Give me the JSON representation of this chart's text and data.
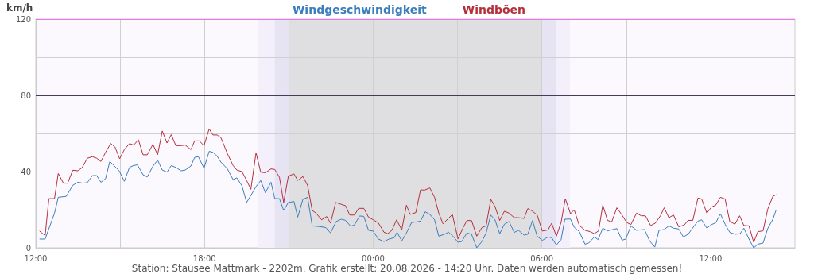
{
  "chart_data": {
    "type": "line",
    "ylabel": "km/h",
    "annotations": [
      "Station: Stausee Mattmark - 2202m. Grafik erstellt: 20.08.2026 - 14:20 Uhr. Daten werden automatisch gemessen!"
    ],
    "xlim": [
      "2026-08-19T12:00",
      "2026-08-20T15:00"
    ],
    "xticks": [
      {
        "value": "2026-08-19T12:00",
        "label": "12:00"
      },
      {
        "value": "2026-08-19T15:00",
        "label": null
      },
      {
        "value": "2026-08-19T18:00",
        "label": "18:00"
      },
      {
        "value": "2026-08-19T21:00",
        "label": null
      },
      {
        "value": "2026-08-20T00:00",
        "label": "00:00"
      },
      {
        "value": "2026-08-20T03:00",
        "label": null
      },
      {
        "value": "2026-08-20T06:00",
        "label": "06:00"
      },
      {
        "value": "2026-08-20T09:00",
        "label": null
      },
      {
        "value": "2026-08-20T12:00",
        "label": "12:00"
      }
    ],
    "ylim": [
      0,
      120
    ],
    "yticks": [
      0,
      {
        "value": 20,
        "label": null
      },
      40,
      {
        "value": 60,
        "label": null
      },
      80,
      {
        "value": 100,
        "label": null
      },
      120
    ],
    "grid": true,
    "legend": "top",
    "marker": "none",
    "line_style": "solid",
    "ref_lines": [
      {
        "axis": "y",
        "value": 40,
        "color": "#f2f020"
      },
      {
        "axis": "y",
        "value": 80,
        "color": "#4a3a5a"
      },
      {
        "axis": "y",
        "value": 120,
        "color": "#f070f0"
      }
    ],
    "bands": [
      {
        "axis": "x",
        "from": "2026-08-19T19:54",
        "to": "2026-08-19T20:30",
        "color": "#f3effb"
      },
      {
        "axis": "x",
        "from": "2026-08-19T20:30",
        "to": "2026-08-19T21:00",
        "color": "#e6e3f2"
      },
      {
        "axis": "x",
        "from": "2026-08-19T21:00",
        "to": "2026-08-20T06:00",
        "color": "#dfdfe2"
      },
      {
        "axis": "x",
        "from": "2026-08-20T06:00",
        "to": "2026-08-20T06:30",
        "color": "#e6e3f2"
      },
      {
        "axis": "x",
        "from": "2026-08-20T06:30",
        "to": "2026-08-20T07:00",
        "color": "#f3effb"
      }
    ],
    "series": [
      {
        "name": "Windgeschwindigkeit",
        "color": "#3b7dbd",
        "x": [
          "2026-08-19T12:08",
          "2026-08-19T12:20",
          "2026-08-19T12:40",
          "2026-08-19T12:48",
          "2026-08-19T13:05",
          "2026-08-19T13:19",
          "2026-08-19T13:30",
          "2026-08-19T13:41",
          "2026-08-19T13:50",
          "2026-08-19T14:01",
          "2026-08-19T14:10",
          "2026-08-19T14:19",
          "2026-08-19T14:29",
          "2026-08-19T14:38",
          "2026-08-19T14:58",
          "2026-08-19T15:09",
          "2026-08-19T15:20",
          "2026-08-19T15:29",
          "2026-08-19T15:37",
          "2026-08-19T15:49",
          "2026-08-19T15:58",
          "2026-08-19T16:10",
          "2026-08-19T16:20",
          "2026-08-19T16:30",
          "2026-08-19T16:40",
          "2026-08-19T16:49",
          "2026-08-19T16:59",
          "2026-08-19T17:10",
          "2026-08-19T17:19",
          "2026-08-19T17:31",
          "2026-08-19T17:39",
          "2026-08-19T17:47",
          "2026-08-19T17:59",
          "2026-08-19T18:10",
          "2026-08-19T18:18",
          "2026-08-19T18:27",
          "2026-08-19T18:35",
          "2026-08-19T18:49",
          "2026-08-19T19:01",
          "2026-08-19T19:09",
          "2026-08-19T19:20",
          "2026-08-19T19:30",
          "2026-08-19T19:40",
          "2026-08-19T19:50",
          "2026-08-19T20:00",
          "2026-08-19T20:10",
          "2026-08-19T20:22",
          "2026-08-19T20:30",
          "2026-08-19T20:40",
          "2026-08-19T20:49",
          "2026-08-19T20:59",
          "2026-08-19T21:11",
          "2026-08-19T21:19",
          "2026-08-19T21:30",
          "2026-08-19T21:40",
          "2026-08-19T21:50",
          "2026-08-19T22:07",
          "2026-08-19T22:19",
          "2026-08-19T22:29",
          "2026-08-19T22:41",
          "2026-08-19T22:52",
          "2026-08-19T23:01",
          "2026-08-19T23:12",
          "2026-08-19T23:20",
          "2026-08-19T23:31",
          "2026-08-19T23:40",
          "2026-08-19T23:50",
          "2026-08-20T00:00",
          "2026-08-20T00:11",
          "2026-08-20T00:23",
          "2026-08-20T00:34",
          "2026-08-20T00:45",
          "2026-08-20T00:51",
          "2026-08-20T01:01",
          "2026-08-20T01:11",
          "2026-08-20T01:22",
          "2026-08-20T01:33",
          "2026-08-20T01:41",
          "2026-08-20T01:51",
          "2026-08-20T02:01",
          "2026-08-20T02:11",
          "2026-08-20T02:20",
          "2026-08-20T02:32",
          "2026-08-20T02:41",
          "2026-08-20T02:52",
          "2026-08-20T03:01",
          "2026-08-20T03:09",
          "2026-08-20T03:20",
          "2026-08-20T03:30",
          "2026-08-20T03:41",
          "2026-08-20T03:52",
          "2026-08-20T04:01",
          "2026-08-20T04:11",
          "2026-08-20T04:20",
          "2026-08-20T04:30",
          "2026-08-20T04:40",
          "2026-08-20T04:50",
          "2026-08-20T05:01",
          "2026-08-20T05:10",
          "2026-08-20T05:22",
          "2026-08-20T05:30",
          "2026-08-20T05:40",
          "2026-08-20T05:50",
          "2026-08-20T06:01",
          "2026-08-20T06:13",
          "2026-08-20T06:21",
          "2026-08-20T06:31",
          "2026-08-20T06:41",
          "2026-08-20T06:49",
          "2026-08-20T07:01",
          "2026-08-20T07:09",
          "2026-08-20T07:20",
          "2026-08-20T07:32",
          "2026-08-20T07:40",
          "2026-08-20T07:52",
          "2026-08-20T08:00",
          "2026-08-20T08:10",
          "2026-08-20T08:20",
          "2026-08-20T08:40",
          "2026-08-20T08:51",
          "2026-08-20T08:59",
          "2026-08-20T09:10",
          "2026-08-20T09:22",
          "2026-08-20T09:39",
          "2026-08-20T09:50",
          "2026-08-20T10:01",
          "2026-08-20T10:10",
          "2026-08-20T10:21",
          "2026-08-20T10:31",
          "2026-08-20T10:41",
          "2026-08-20T10:52",
          "2026-08-20T11:02",
          "2026-08-20T11:12",
          "2026-08-20T11:23",
          "2026-08-20T11:33",
          "2026-08-20T11:41",
          "2026-08-20T11:52",
          "2026-08-20T12:02",
          "2026-08-20T12:11",
          "2026-08-20T12:21",
          "2026-08-20T12:31",
          "2026-08-20T12:41",
          "2026-08-20T12:52",
          "2026-08-20T13:03",
          "2026-08-20T13:11",
          "2026-08-20T13:22",
          "2026-08-20T13:32",
          "2026-08-20T13:41",
          "2026-08-20T13:52",
          "2026-08-20T14:02",
          "2026-08-20T14:13",
          "2026-08-20T14:20"
        ],
        "values": [
          4.6,
          4.6,
          18.2,
          26.5,
          27.0,
          32.8,
          34.4,
          33.9,
          34.2,
          37.9,
          37.9,
          34.4,
          36.3,
          45.3,
          40.4,
          34.9,
          42.2,
          43.2,
          43.5,
          38.3,
          37.2,
          42.8,
          46.0,
          40.8,
          39.7,
          43.1,
          42.2,
          40.4,
          40.8,
          42.9,
          47.4,
          47.8,
          41.8,
          50.6,
          50.1,
          48.1,
          45.0,
          41.4,
          35.8,
          36.7,
          32.5,
          23.8,
          27.9,
          32.1,
          35.3,
          28.9,
          34.4,
          25.8,
          25.8,
          19.6,
          23.8,
          24.3,
          16.1,
          25.4,
          26.5,
          11.5,
          11.1,
          10.6,
          7.8,
          13.8,
          15.0,
          14.4,
          11.3,
          12.0,
          16.7,
          16.5,
          9.2,
          8.8,
          4.6,
          3.3,
          4.6,
          5.3,
          8.2,
          3.6,
          7.8,
          13.3,
          13.6,
          14.0,
          18.9,
          17.5,
          14.7,
          6.1,
          7.1,
          8.2,
          5.7,
          2.9,
          3.3,
          7.8,
          7.1,
          0,
          3.3,
          7.8,
          17.2,
          14.7,
          7.4,
          12.4,
          13.8,
          8.1,
          9.2,
          6.7,
          7.1,
          14.3,
          6.1,
          3.9,
          5.7,
          5.3,
          1.5,
          4.3,
          15.0,
          15.1,
          10.8,
          8.5,
          1.9,
          2.5,
          5.7,
          4.3,
          10.3,
          8.9,
          10.1,
          4.0,
          4.6,
          11.5,
          9.2,
          9.6,
          3.6,
          0.4,
          9.2,
          9.6,
          11.5,
          10.3,
          9.9,
          5.7,
          7.1,
          10.8,
          14.0,
          14.7,
          10.3,
          12.2,
          13.1,
          17.8,
          12.4,
          8.1,
          7.1,
          7.4,
          10.3,
          4.6,
          0,
          1.9,
          2.5,
          10.1,
          15.0,
          19.9
        ]
      },
      {
        "name": "Windböen",
        "color": "#b3303c",
        "x": [
          "2026-08-19T12:08",
          "2026-08-19T12:20",
          "2026-08-19T12:28",
          "2026-08-19T12:40",
          "2026-08-19T12:48",
          "2026-08-19T12:59",
          "2026-08-19T13:08",
          "2026-08-19T13:19",
          "2026-08-19T13:30",
          "2026-08-19T13:39",
          "2026-08-19T13:50",
          "2026-08-19T14:01",
          "2026-08-19T14:10",
          "2026-08-19T14:19",
          "2026-08-19T14:29",
          "2026-08-19T14:40",
          "2026-08-19T14:49",
          "2026-08-19T14:59",
          "2026-08-19T15:09",
          "2026-08-19T15:20",
          "2026-08-19T15:29",
          "2026-08-19T15:39",
          "2026-08-19T15:49",
          "2026-08-19T15:58",
          "2026-08-19T16:10",
          "2026-08-19T16:20",
          "2026-08-19T16:30",
          "2026-08-19T16:40",
          "2026-08-19T16:49",
          "2026-08-19T16:59",
          "2026-08-19T17:10",
          "2026-08-19T17:19",
          "2026-08-19T17:31",
          "2026-08-19T17:39",
          "2026-08-19T17:49",
          "2026-08-19T17:59",
          "2026-08-19T18:10",
          "2026-08-19T18:18",
          "2026-08-19T18:27",
          "2026-08-19T18:35",
          "2026-08-19T18:49",
          "2026-08-19T19:01",
          "2026-08-19T19:09",
          "2026-08-19T19:20",
          "2026-08-19T19:30",
          "2026-08-19T19:39",
          "2026-08-19T19:50",
          "2026-08-19T20:00",
          "2026-08-19T20:10",
          "2026-08-19T20:22",
          "2026-08-19T20:30",
          "2026-08-19T20:40",
          "2026-08-19T20:49",
          "2026-08-19T20:59",
          "2026-08-19T21:11",
          "2026-08-19T21:19",
          "2026-08-19T21:30",
          "2026-08-19T21:40",
          "2026-08-19T21:50",
          "2026-08-19T21:58",
          "2026-08-19T22:10",
          "2026-08-19T22:21",
          "2026-08-19T22:29",
          "2026-08-19T22:40",
          "2026-08-19T22:52",
          "2026-08-19T23:01",
          "2026-08-19T23:10",
          "2026-08-19T23:20",
          "2026-08-19T23:29",
          "2026-08-19T23:40",
          "2026-08-19T23:50",
          "2026-08-20T00:00",
          "2026-08-20T00:11",
          "2026-08-20T00:23",
          "2026-08-20T00:31",
          "2026-08-20T00:40",
          "2026-08-20T00:50",
          "2026-08-20T01:01",
          "2026-08-20T01:11",
          "2026-08-20T01:19",
          "2026-08-20T01:31",
          "2026-08-20T01:41",
          "2026-08-20T01:50",
          "2026-08-20T02:01",
          "2026-08-20T02:11",
          "2026-08-20T02:20",
          "2026-08-20T02:29",
          "2026-08-20T02:49",
          "2026-08-20T03:01",
          "2026-08-20T03:12",
          "2026-08-20T03:20",
          "2026-08-20T03:30",
          "2026-08-20T03:41",
          "2026-08-20T03:52",
          "2026-08-20T04:01",
          "2026-08-20T04:11",
          "2026-08-20T04:20",
          "2026-08-20T04:30",
          "2026-08-20T04:40",
          "2026-08-20T04:50",
          "2026-08-20T05:01",
          "2026-08-20T05:10",
          "2026-08-20T05:22",
          "2026-08-20T05:30",
          "2026-08-20T05:40",
          "2026-08-20T05:50",
          "2026-08-20T06:01",
          "2026-08-20T06:13",
          "2026-08-20T06:21",
          "2026-08-20T06:31",
          "2026-08-20T06:41",
          "2026-08-20T06:50",
          "2026-08-20T07:01",
          "2026-08-20T07:09",
          "2026-08-20T07:20",
          "2026-08-20T07:32",
          "2026-08-20T07:43",
          "2026-08-20T07:52",
          "2026-08-20T08:01",
          "2026-08-20T08:10",
          "2026-08-20T08:20",
          "2026-08-20T08:29",
          "2026-08-20T08:40",
          "2026-08-20T08:51",
          "2026-08-20T09:01",
          "2026-08-20T09:10",
          "2026-08-20T09:22",
          "2026-08-20T09:32",
          "2026-08-20T09:41",
          "2026-08-20T09:52",
          "2026-08-20T10:02",
          "2026-08-20T10:13",
          "2026-08-20T10:21",
          "2026-08-20T10:31",
          "2026-08-20T10:41",
          "2026-08-20T10:52",
          "2026-08-20T11:04",
          "2026-08-20T11:12",
          "2026-08-20T11:22",
          "2026-08-20T11:33",
          "2026-08-20T11:41",
          "2026-08-20T11:52",
          "2026-08-20T12:02",
          "2026-08-20T12:11",
          "2026-08-20T12:21",
          "2026-08-20T12:31",
          "2026-08-20T12:41",
          "2026-08-20T12:52",
          "2026-08-20T13:02",
          "2026-08-20T13:11",
          "2026-08-20T13:22",
          "2026-08-20T13:32",
          "2026-08-20T13:41",
          "2026-08-20T13:52",
          "2026-08-20T14:02",
          "2026-08-20T14:13",
          "2026-08-20T14:20"
        ],
        "values": [
          8.8,
          6.4,
          25.8,
          25.8,
          39.0,
          33.9,
          33.9,
          40.7,
          40.4,
          42.1,
          47.0,
          47.8,
          47.0,
          45.3,
          50.1,
          54.7,
          52.9,
          46.7,
          51.5,
          54.7,
          53.9,
          56.7,
          48.8,
          48.8,
          54.3,
          48.8,
          61.3,
          55.0,
          59.4,
          53.6,
          53.6,
          53.9,
          51.5,
          56.1,
          56.1,
          53.6,
          62.4,
          59.2,
          59.2,
          57.8,
          49.4,
          43.2,
          40.8,
          40.0,
          35.3,
          30.7,
          49.9,
          39.7,
          39.4,
          41.4,
          41.1,
          37.0,
          23.8,
          37.6,
          38.8,
          35.3,
          37.4,
          32.8,
          19.6,
          18.2,
          14.7,
          16.4,
          12.9,
          23.8,
          22.8,
          22.1,
          17.2,
          17.2,
          20.7,
          20.7,
          16.1,
          14.7,
          13.1,
          8.2,
          7.4,
          9.2,
          14.7,
          9.4,
          22.4,
          17.5,
          18.5,
          30.4,
          30.3,
          31.4,
          26.5,
          18.2,
          12.6,
          17.5,
          4.7,
          10.6,
          14.3,
          14.3,
          6.1,
          10.6,
          11.5,
          25.4,
          21.7,
          14.3,
          19.2,
          18.2,
          15.8,
          15.8,
          15.4,
          20.6,
          19.2,
          17.2,
          8.8,
          9.4,
          12.9,
          6.1,
          13.3,
          25.8,
          17.9,
          19.9,
          11.7,
          9.2,
          8.5,
          7.4,
          8.9,
          22.4,
          14.4,
          13.6,
          21.0,
          17.2,
          13.3,
          12.2,
          18.2,
          16.8,
          16.8,
          11.7,
          12.9,
          16.8,
          21.0,
          15.8,
          17.2,
          11.0,
          12.0,
          14.4,
          14.4,
          26.1,
          25.6,
          18.2,
          21.4,
          22.4,
          26.5,
          25.6,
          13.8,
          12.4,
          16.8,
          11.7,
          11.5,
          2.9,
          8.5,
          8.9,
          20.3,
          27.0,
          27.9
        ]
      }
    ]
  }
}
